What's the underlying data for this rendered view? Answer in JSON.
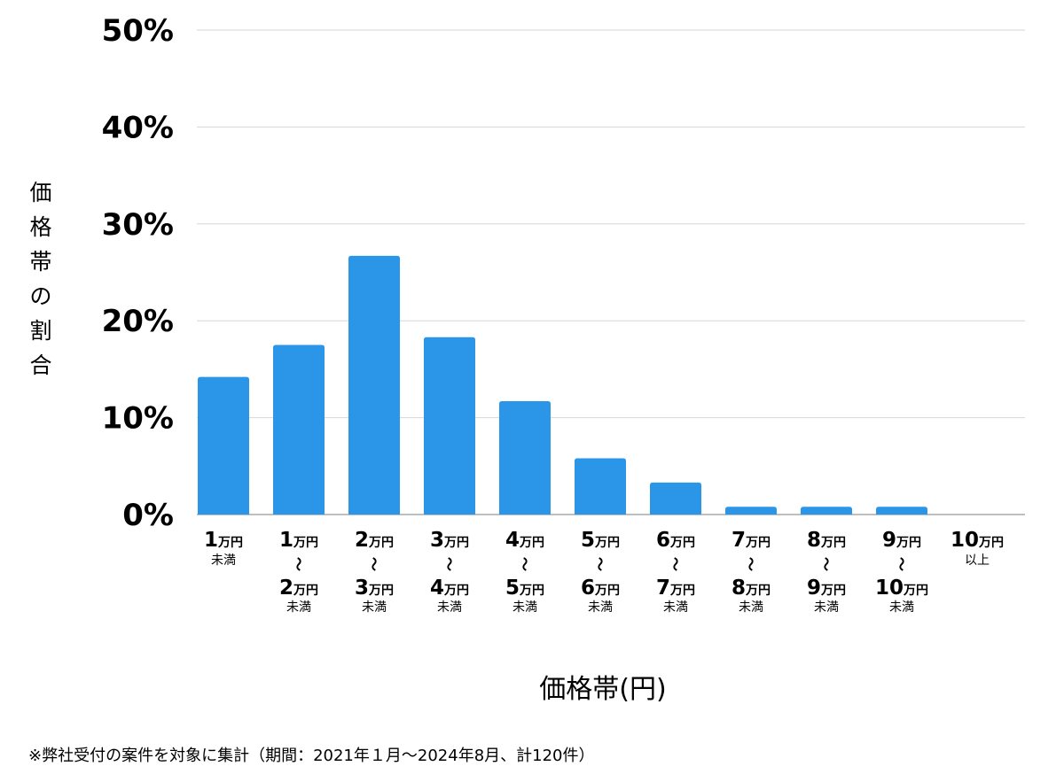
{
  "chart_data": {
    "type": "bar",
    "categories": [
      {
        "from": "1",
        "to": "",
        "unit": "万円",
        "suffix": "未満"
      },
      {
        "from": "1",
        "to": "2",
        "unit": "万円",
        "suffix": "未満"
      },
      {
        "from": "2",
        "to": "3",
        "unit": "万円",
        "suffix": "未満"
      },
      {
        "from": "3",
        "to": "4",
        "unit": "万円",
        "suffix": "未満"
      },
      {
        "from": "4",
        "to": "5",
        "unit": "万円",
        "suffix": "未満"
      },
      {
        "from": "5",
        "to": "6",
        "unit": "万円",
        "suffix": "未満"
      },
      {
        "from": "6",
        "to": "7",
        "unit": "万円",
        "suffix": "未満"
      },
      {
        "from": "7",
        "to": "8",
        "unit": "万円",
        "suffix": "未満"
      },
      {
        "from": "8",
        "to": "9",
        "unit": "万円",
        "suffix": "未満"
      },
      {
        "from": "9",
        "to": "10",
        "unit": "万円",
        "suffix": "未満"
      },
      {
        "from": "10",
        "to": "",
        "unit": "万円",
        "suffix": "以上"
      }
    ],
    "range_separator": "〜",
    "values": [
      14.2,
      17.5,
      26.7,
      18.3,
      11.7,
      5.8,
      3.3,
      0.8,
      0.8,
      0.8,
      0
    ],
    "ylabel": "価格帯の割合",
    "xlabel": "価格帯(円)",
    "ylim": [
      0,
      50
    ],
    "yticks": [
      "0%",
      "10%",
      "20%",
      "30%",
      "40%",
      "50%"
    ],
    "grid": true,
    "bar_color": "#2B95E8"
  },
  "footnote": "※弊社受付の案件を対象に集計（期間：2021年１月〜2024年8月、計120件）"
}
